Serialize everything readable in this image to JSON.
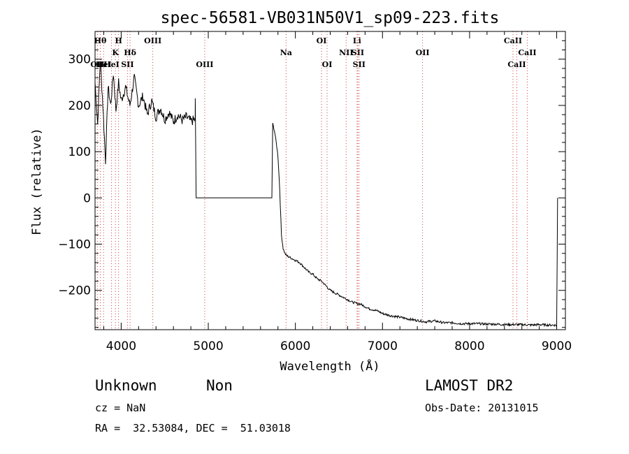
{
  "chart_data": {
    "type": "line",
    "title": "spec-56581-VB031N50V1_sp09-223.fits",
    "xlabel": "Wavelength (Å)",
    "ylabel": "Flux (relative)",
    "xlim": [
      3700,
      9100
    ],
    "ylim": [
      -285,
      360
    ],
    "xticks": [
      4000,
      5000,
      6000,
      7000,
      8000,
      9000
    ],
    "yticks": [
      -200,
      -100,
      0,
      100,
      200,
      300
    ],
    "grid": false,
    "series": [
      {
        "x": [
          3700,
          3730,
          3760,
          3790,
          3820,
          3850,
          3880,
          3910,
          3940,
          3970,
          4000,
          4050,
          4100,
          4150,
          4200,
          4250,
          4300,
          4350,
          4400,
          4450,
          4500,
          4550,
          4600,
          4650,
          4700,
          4750,
          4800,
          4850,
          4851,
          4860,
          5000,
          5200,
          5400,
          5600,
          5730,
          5740,
          5760,
          5780,
          5800,
          5820,
          5840,
          5860,
          5880,
          5900,
          5950,
          6000,
          6050,
          6100,
          6150,
          6200,
          6250,
          6300,
          6350,
          6400,
          6450,
          6500,
          6550,
          6600,
          6650,
          6700,
          6750,
          6800,
          6850,
          6900,
          6950,
          7000,
          7100,
          7200,
          7300,
          7400,
          7500,
          7600,
          7700,
          7800,
          7900,
          8000,
          8100,
          8200,
          8300,
          8400,
          8500,
          8600,
          8700,
          8800,
          8900,
          8980,
          9000,
          9010
        ],
        "y": [
          250,
          160,
          300,
          200,
          80,
          240,
          200,
          270,
          190,
          250,
          210,
          240,
          200,
          260,
          200,
          220,
          180,
          210,
          175,
          195,
          170,
          185,
          165,
          180,
          168,
          175,
          165,
          170,
          210,
          0,
          0,
          0,
          0,
          0,
          0,
          160,
          145,
          120,
          90,
          20,
          -80,
          -110,
          -120,
          -125,
          -130,
          -135,
          -140,
          -150,
          -160,
          -165,
          -175,
          -180,
          -190,
          -200,
          -205,
          -210,
          -215,
          -220,
          -225,
          -228,
          -230,
          -235,
          -240,
          -242,
          -245,
          -250,
          -255,
          -258,
          -262,
          -265,
          -268,
          -266,
          -270,
          -270,
          -272,
          -272,
          -272,
          -273,
          -273,
          -274,
          -274,
          -274,
          -275,
          -274,
          -275,
          -275,
          -276,
          0
        ]
      }
    ],
    "lines": [
      {
        "w": 3727,
        "label": "OII",
        "row": 3
      },
      {
        "w": 3760,
        "label": "Hθ",
        "row": 1
      },
      {
        "w": 3798,
        "label": "HeI",
        "row": 3
      },
      {
        "w": 3889,
        "label": "HeI",
        "row": 3
      },
      {
        "w": 3934,
        "label": "K",
        "row": 2
      },
      {
        "w": 3970,
        "label": "H",
        "row": 1
      },
      {
        "w": 4072,
        "label": "SII",
        "row": 3
      },
      {
        "w": 4102,
        "label": "Hδ",
        "row": 2
      },
      {
        "w": 4363,
        "label": "OIII",
        "row": 1
      },
      {
        "w": 4959,
        "label": "OIII",
        "row": 3
      },
      {
        "w": 5893,
        "label": "Na",
        "row": 2
      },
      {
        "w": 6300,
        "label": "OI",
        "row": 1
      },
      {
        "w": 6364,
        "label": "OI",
        "row": 3
      },
      {
        "w": 6583,
        "label": "NII",
        "row": 2
      },
      {
        "w": 6708,
        "label": "Li",
        "row": 1
      },
      {
        "w": 6716,
        "label": "SII",
        "row": 2
      },
      {
        "w": 6731,
        "label": "SII",
        "row": 3
      },
      {
        "w": 7460,
        "label": "OII",
        "row": 2
      },
      {
        "w": 8498,
        "label": "CaII",
        "row": 1
      },
      {
        "w": 8542,
        "label": "CaII",
        "row": 3
      },
      {
        "w": 8662,
        "label": "CaII",
        "row": 2
      }
    ]
  },
  "footer": {
    "class_label": "Unknown",
    "subclass_label": "Non",
    "survey": "LAMOST DR2",
    "redshift": "cz = NaN",
    "obs_date": "Obs-Date: 20131015",
    "coords": "RA =  32.53084, DEC =  51.03018"
  }
}
